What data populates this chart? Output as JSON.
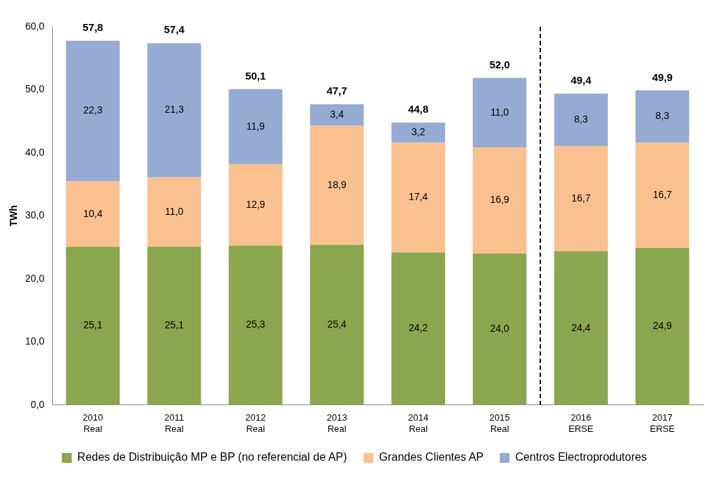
{
  "chart_data": {
    "type": "bar",
    "stacked": true,
    "ylabel": "TWh",
    "categories": [
      "2010\nReal",
      "2011\nReal",
      "2012\nReal",
      "2013\nReal",
      "2014\nReal",
      "2015\nReal",
      "2016\nERSE",
      "2017\nERSE"
    ],
    "series": [
      {
        "name": "Redes de Distribuição MP e BP (no referencial de AP)",
        "color": "#8aa64e",
        "values": [
          25.1,
          25.1,
          25.3,
          25.4,
          24.2,
          24.0,
          24.4,
          24.9
        ],
        "value_labels": [
          "25,1",
          "25,1",
          "25,3",
          "25,4",
          "24,2",
          "24,0",
          "24,4",
          "24,9"
        ]
      },
      {
        "name": "Grandes Clientes AP",
        "color": "#fac090",
        "values": [
          10.4,
          11.0,
          12.9,
          18.9,
          17.4,
          16.9,
          16.7,
          16.7
        ],
        "value_labels": [
          "10,4",
          "11,0",
          "12,9",
          "18,9",
          "17,4",
          "16,9",
          "16,7",
          "16,7"
        ]
      },
      {
        "name": "Centros Electroprodutores",
        "color": "#95abd3",
        "values": [
          22.3,
          21.3,
          11.9,
          3.4,
          3.2,
          11.0,
          8.3,
          8.3
        ],
        "value_labels": [
          "22,3",
          "21,3",
          "11,9",
          "3,4",
          "3,2",
          "11,0",
          "8,3",
          "8,3"
        ]
      }
    ],
    "totals": [
      "57,8",
      "57,4",
      "50,1",
      "47,7",
      "44,8",
      "52,0",
      "49,4",
      "49,9"
    ],
    "ylim": [
      0,
      60
    ],
    "yticks": [
      {
        "value": 0,
        "label": "0,0"
      },
      {
        "value": 10,
        "label": "10,0"
      },
      {
        "value": 20,
        "label": "20,0"
      },
      {
        "value": 30,
        "label": "30,0"
      },
      {
        "value": 40,
        "label": "40,0"
      },
      {
        "value": 50,
        "label": "50,0"
      },
      {
        "value": 60,
        "label": "60,0"
      }
    ],
    "grid": false,
    "legend": "bottom"
  }
}
